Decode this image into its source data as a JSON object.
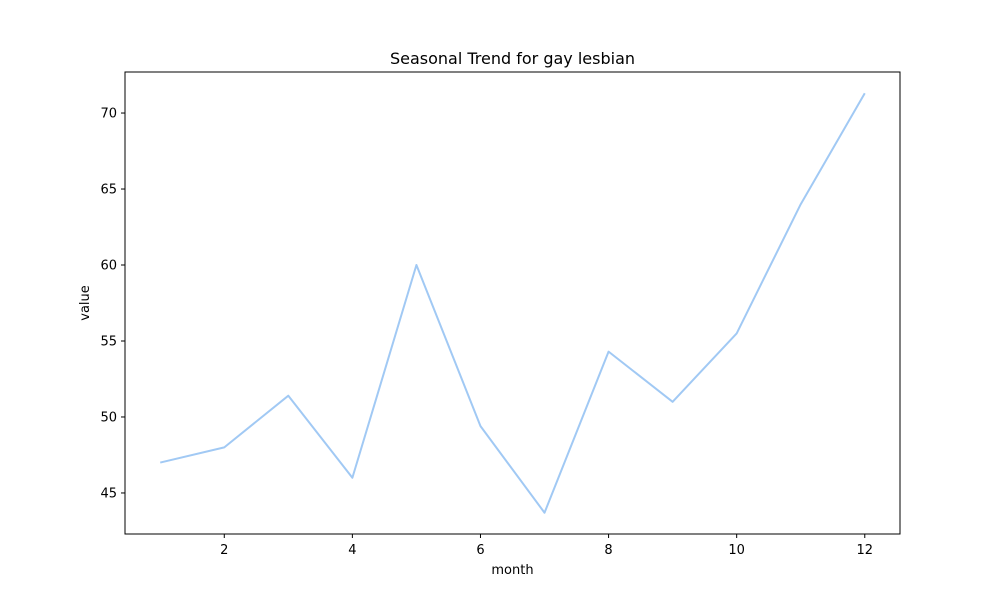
{
  "chart_data": {
    "type": "line",
    "title": "Seasonal Trend for gay  lesbian",
    "xlabel": "month",
    "ylabel": "value",
    "x": [
      1,
      2,
      3,
      4,
      5,
      6,
      7,
      8,
      9,
      10,
      11,
      12
    ],
    "series": [
      {
        "values": [
          47.0,
          48.0,
          51.4,
          46.0,
          60.0,
          49.4,
          43.7,
          54.3,
          51.0,
          55.5,
          64.0,
          71.3
        ],
        "color": "#a1c9f4"
      }
    ],
    "xlim": [
      0.45,
      12.55
    ],
    "ylim": [
      42.3,
      72.7
    ],
    "xticks": [
      2,
      4,
      6,
      8,
      10,
      12
    ],
    "yticks": [
      45,
      50,
      55,
      60,
      65,
      70
    ],
    "grid": false,
    "legend": false
  }
}
